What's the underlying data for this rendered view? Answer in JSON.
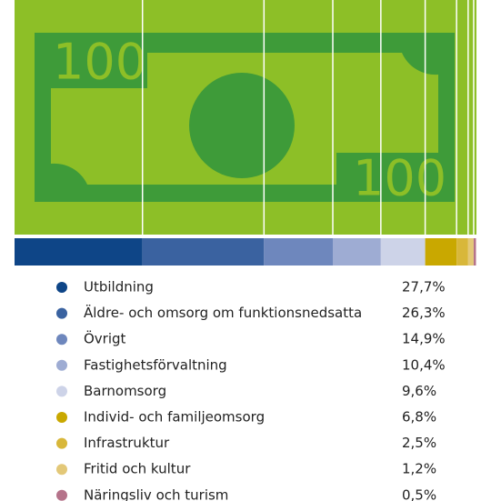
{
  "chart_data": {
    "type": "bar",
    "categories": [
      "Utbildning",
      "Äldre- och omsorg om funktionsnedsatta",
      "Övrigt",
      "Fastighetsförvaltning",
      "Barnomsorg",
      "Individ- och familjeomsorg",
      "Infrastruktur",
      "Fritid och kultur",
      "Näringsliv och turism"
    ],
    "values": [
      27.7,
      26.3,
      14.9,
      10.4,
      9.6,
      6.8,
      2.5,
      1.2,
      0.5
    ],
    "value_labels": [
      "27,7%",
      "26,3%",
      "14,9%",
      "10,4%",
      "9,6%",
      "6,8%",
      "2,5%",
      "1,2%",
      "0,5%"
    ],
    "colors": [
      "#0e4587",
      "#3a62a0",
      "#6e87bd",
      "#9eacd3",
      "#cdd3e8",
      "#c9a800",
      "#d8b73a",
      "#e3c878",
      "#b5738a"
    ],
    "xlim": [
      0,
      100
    ]
  }
}
